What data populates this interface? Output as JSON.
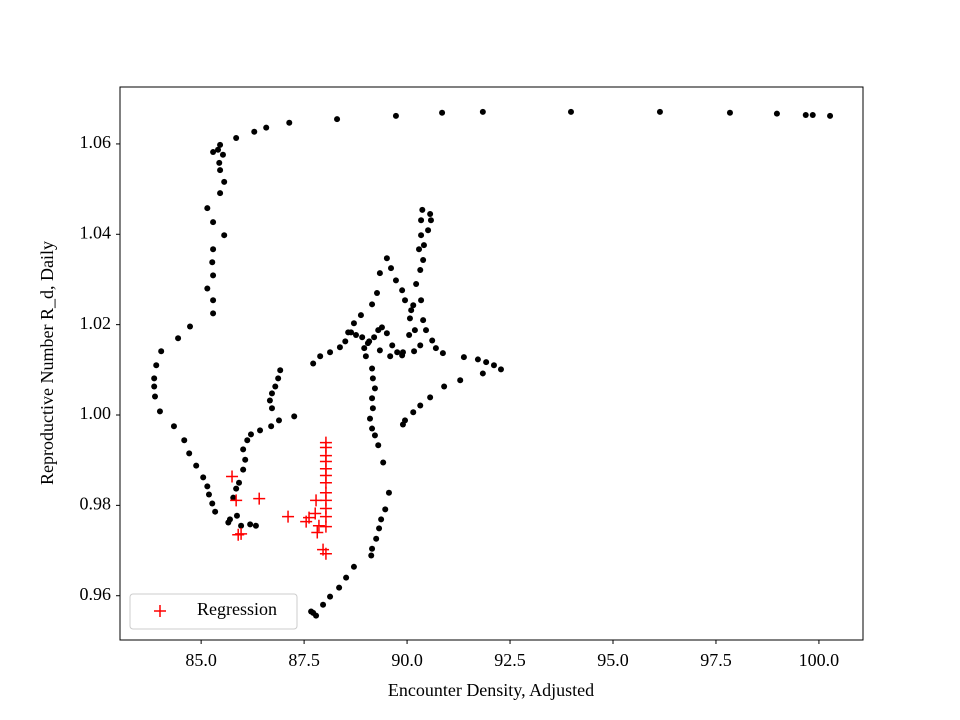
{
  "chart_data": {
    "type": "scatter",
    "xlabel": "Encounter Density, Adjusted",
    "ylabel": "Reproductive Number R_d, Daily",
    "xlim": [
      83.03,
      101.07
    ],
    "ylim": [
      0.9502,
      1.0726
    ],
    "xticks": [
      {
        "value": 85,
        "label": "85.0"
      },
      87.5,
      {
        "value": 90,
        "label": "90.0"
      },
      92.5,
      {
        "value": 95,
        "label": "95.0"
      },
      97.5,
      {
        "value": 100,
        "label": "100.0"
      }
    ],
    "yticks": [
      0.96,
      0.98,
      {
        "value": 1,
        "label": "1.00"
      },
      1.02,
      1.04,
      1.06
    ],
    "legend": "lower left",
    "series": [
      {
        "color": "#000000",
        "marker": "dot",
        "x": [
          85.41,
          85.46,
          85.29,
          85.53,
          85.85,
          86.29,
          86.58,
          87.14,
          88.3,
          89.73,
          90.85,
          91.84,
          93.98,
          96.14,
          97.84,
          98.98,
          99.68,
          99.85,
          100.27,
          85.44,
          85.46,
          85.56,
          85.46,
          85.15,
          85.29,
          85.56,
          85.29,
          85.27,
          85.29,
          85.15,
          85.29,
          85.29,
          84.73,
          84.44,
          84.03,
          83.91,
          83.86,
          83.86,
          83.88,
          84.0,
          84.34,
          84.59,
          84.71,
          84.88,
          85.05,
          85.15,
          85.19,
          85.27,
          85.34,
          85.7,
          85.66,
          85.97,
          86.19,
          86.33,
          85.87,
          85.78,
          85.85,
          85.92,
          86.02,
          86.07,
          86.02,
          86.12,
          86.21,
          86.43,
          86.7,
          86.89,
          87.26,
          86.72,
          86.67,
          86.72,
          86.8,
          86.87,
          86.92,
          87.72,
          87.79,
          87.67,
          87.96,
          88.13,
          88.35,
          88.52,
          88.71,
          89.13,
          89.15,
          89.25,
          89.32,
          89.37,
          89.47,
          89.56,
          89.42,
          89.3,
          89.22,
          89.15,
          89.1,
          89.17,
          89.15,
          89.22,
          89.17,
          89.15,
          89.0,
          88.96,
          89.05,
          89.2,
          89.3,
          89.39,
          89.51,
          89.64,
          89.76,
          89.88,
          90.17,
          90.32,
          90.19,
          90.07,
          90.15,
          89.95,
          89.88,
          89.73,
          89.61,
          89.51,
          89.34,
          89.27,
          89.15,
          88.88,
          88.71,
          88.57,
          88.5,
          88.37,
          88.13,
          87.89,
          87.72,
          88.64,
          88.76,
          88.91,
          89.08,
          89.34,
          89.59,
          89.9,
          90.05,
          90.1,
          90.22,
          90.32,
          90.29,
          90.34,
          90.34,
          90.37,
          90.56,
          90.58,
          90.51,
          90.41,
          90.39,
          90.34,
          90.39,
          90.46,
          90.61,
          90.7,
          90.87,
          91.38,
          91.72,
          91.92,
          92.11,
          92.28,
          91.84,
          91.29,
          90.9,
          90.56,
          90.32,
          90.15,
          89.95,
          89.9
        ],
        "values": [
          1.0587,
          1.0598,
          1.0582,
          1.0576,
          1.0613,
          1.0627,
          1.0636,
          1.0647,
          1.0655,
          1.0662,
          1.0669,
          1.0671,
          1.0671,
          1.0671,
          1.0669,
          1.0667,
          1.0664,
          1.0664,
          1.0662,
          1.0558,
          1.0542,
          1.0516,
          1.0491,
          1.0458,
          1.0427,
          1.0398,
          1.0367,
          1.0338,
          1.0309,
          1.028,
          1.0254,
          1.0225,
          1.0196,
          1.017,
          1.0141,
          1.011,
          1.0081,
          1.0063,
          1.0041,
          1.0008,
          0.9975,
          0.9944,
          0.9915,
          0.9888,
          0.9862,
          0.9842,
          0.9824,
          0.9804,
          0.9786,
          0.9769,
          0.9762,
          0.9755,
          0.9758,
          0.9755,
          0.9777,
          0.9817,
          0.9837,
          0.985,
          0.9879,
          0.9901,
          0.9924,
          0.9944,
          0.9957,
          0.9966,
          0.9975,
          0.9988,
          0.9997,
          1.0015,
          1.0032,
          1.0048,
          1.0063,
          1.0081,
          1.0099,
          0.9562,
          0.9556,
          0.9565,
          0.958,
          0.9598,
          0.9618,
          0.964,
          0.9664,
          0.9689,
          0.9704,
          0.9726,
          0.9749,
          0.9769,
          0.9791,
          0.9828,
          0.9895,
          0.9933,
          0.9955,
          0.997,
          0.9992,
          1.0015,
          1.0037,
          1.0059,
          1.0081,
          1.0103,
          1.013,
          1.0148,
          1.0159,
          1.0172,
          1.0188,
          1.0194,
          1.0181,
          1.0154,
          1.0139,
          1.0132,
          1.0141,
          1.0154,
          1.0188,
          1.0214,
          1.0243,
          1.0254,
          1.0276,
          1.0298,
          1.0325,
          1.0347,
          1.0314,
          1.027,
          1.0245,
          1.0221,
          1.0203,
          1.0183,
          1.0163,
          1.015,
          1.0139,
          1.013,
          1.0114,
          1.0183,
          1.0177,
          1.0172,
          1.0163,
          1.0143,
          1.013,
          1.0139,
          1.0177,
          1.0232,
          1.029,
          1.0321,
          1.0367,
          1.0398,
          1.0431,
          1.0454,
          1.0445,
          1.0431,
          1.0409,
          1.0376,
          1.0343,
          1.0254,
          1.021,
          1.0188,
          1.0165,
          1.0148,
          1.0137,
          1.0128,
          1.0123,
          1.0117,
          1.011,
          1.0101,
          1.0092,
          1.0077,
          1.0063,
          1.0039,
          1.0021,
          1.0006,
          0.9988,
          0.9979
        ]
      },
      {
        "name": "Regression",
        "color": "#ff0000",
        "marker": "plus",
        "x": [
          85.75,
          85.85,
          85.9,
          85.97,
          86.41,
          87.11,
          87.55,
          87.62,
          87.77,
          87.79,
          87.82,
          87.86,
          87.96,
          88.03,
          88.03,
          88.03,
          88.03,
          88.03,
          88.03,
          88.03,
          88.03,
          88.03,
          88.03,
          88.03,
          88.03,
          88.03
        ],
        "values": [
          0.9864,
          0.9811,
          0.9735,
          0.9737,
          0.9815,
          0.9775,
          0.9764,
          0.9773,
          0.9782,
          0.9811,
          0.974,
          0.9755,
          0.9702,
          0.9693,
          0.9939,
          0.9928,
          0.991,
          0.9897,
          0.9881,
          0.9866,
          0.985,
          0.9828,
          0.9811,
          0.9793,
          0.9775,
          0.9753
        ]
      }
    ]
  }
}
